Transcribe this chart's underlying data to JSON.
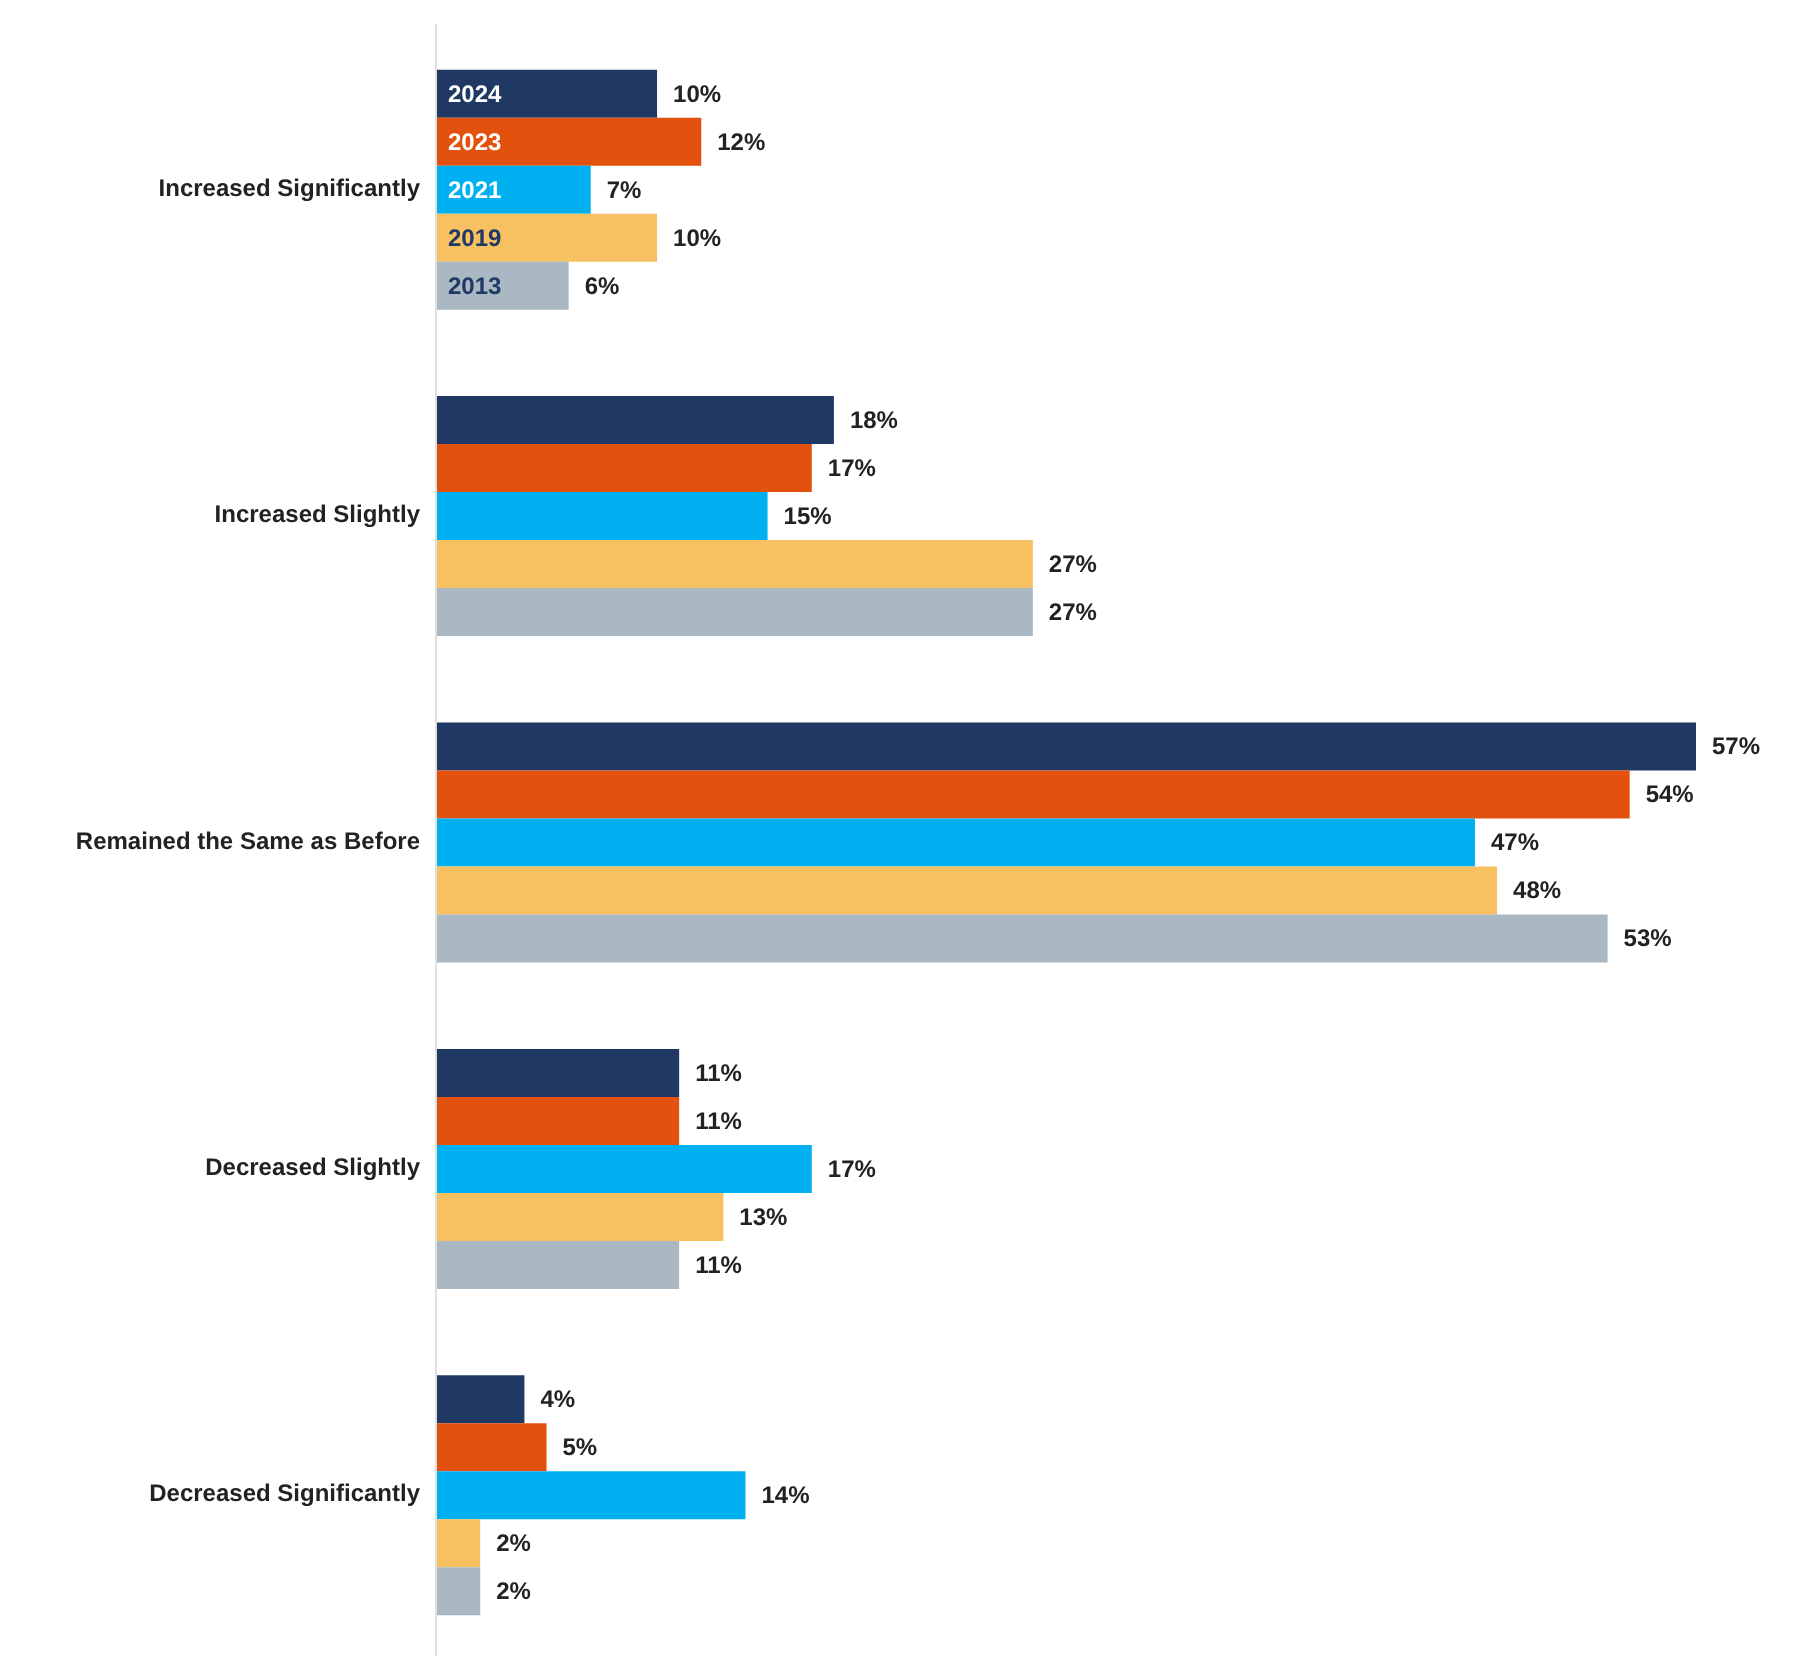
{
  "chart_data": {
    "type": "bar",
    "orientation": "horizontal",
    "tick_labels": "y",
    "categories": [
      "Increased Significantly",
      "Increased Slightly",
      "Remained the Same as Before",
      "Decreased Slightly",
      "Decreased Significantly"
    ],
    "series": [
      {
        "name": "2024",
        "color": "#1f3864",
        "values": [
          10,
          18,
          57,
          11,
          4
        ],
        "value_labels": [
          "10%",
          "18%",
          "57%",
          "11%",
          "4%"
        ]
      },
      {
        "name": "2023",
        "color": "#e2520e",
        "values": [
          12,
          17,
          54,
          11,
          5
        ],
        "value_labels": [
          "12%",
          "17%",
          "54%",
          "11%",
          "5%"
        ]
      },
      {
        "name": "2021",
        "color": "#00b0f0",
        "values": [
          7,
          15,
          47,
          17,
          14
        ],
        "value_labels": [
          "7%",
          "15%",
          "47%",
          "17%",
          "14%"
        ]
      },
      {
        "name": "2019",
        "color": "#f7c060",
        "values": [
          10,
          27,
          48,
          13,
          2
        ],
        "value_labels": [
          "10%",
          "27%",
          "48%",
          "13%",
          "2%"
        ]
      },
      {
        "name": "2013",
        "color": "#a9b8c3",
        "values": [
          6,
          27,
          53,
          11,
          2
        ],
        "value_labels": [
          "6%",
          "27%",
          "53%",
          "11%",
          "2%"
        ]
      }
    ]
  }
}
